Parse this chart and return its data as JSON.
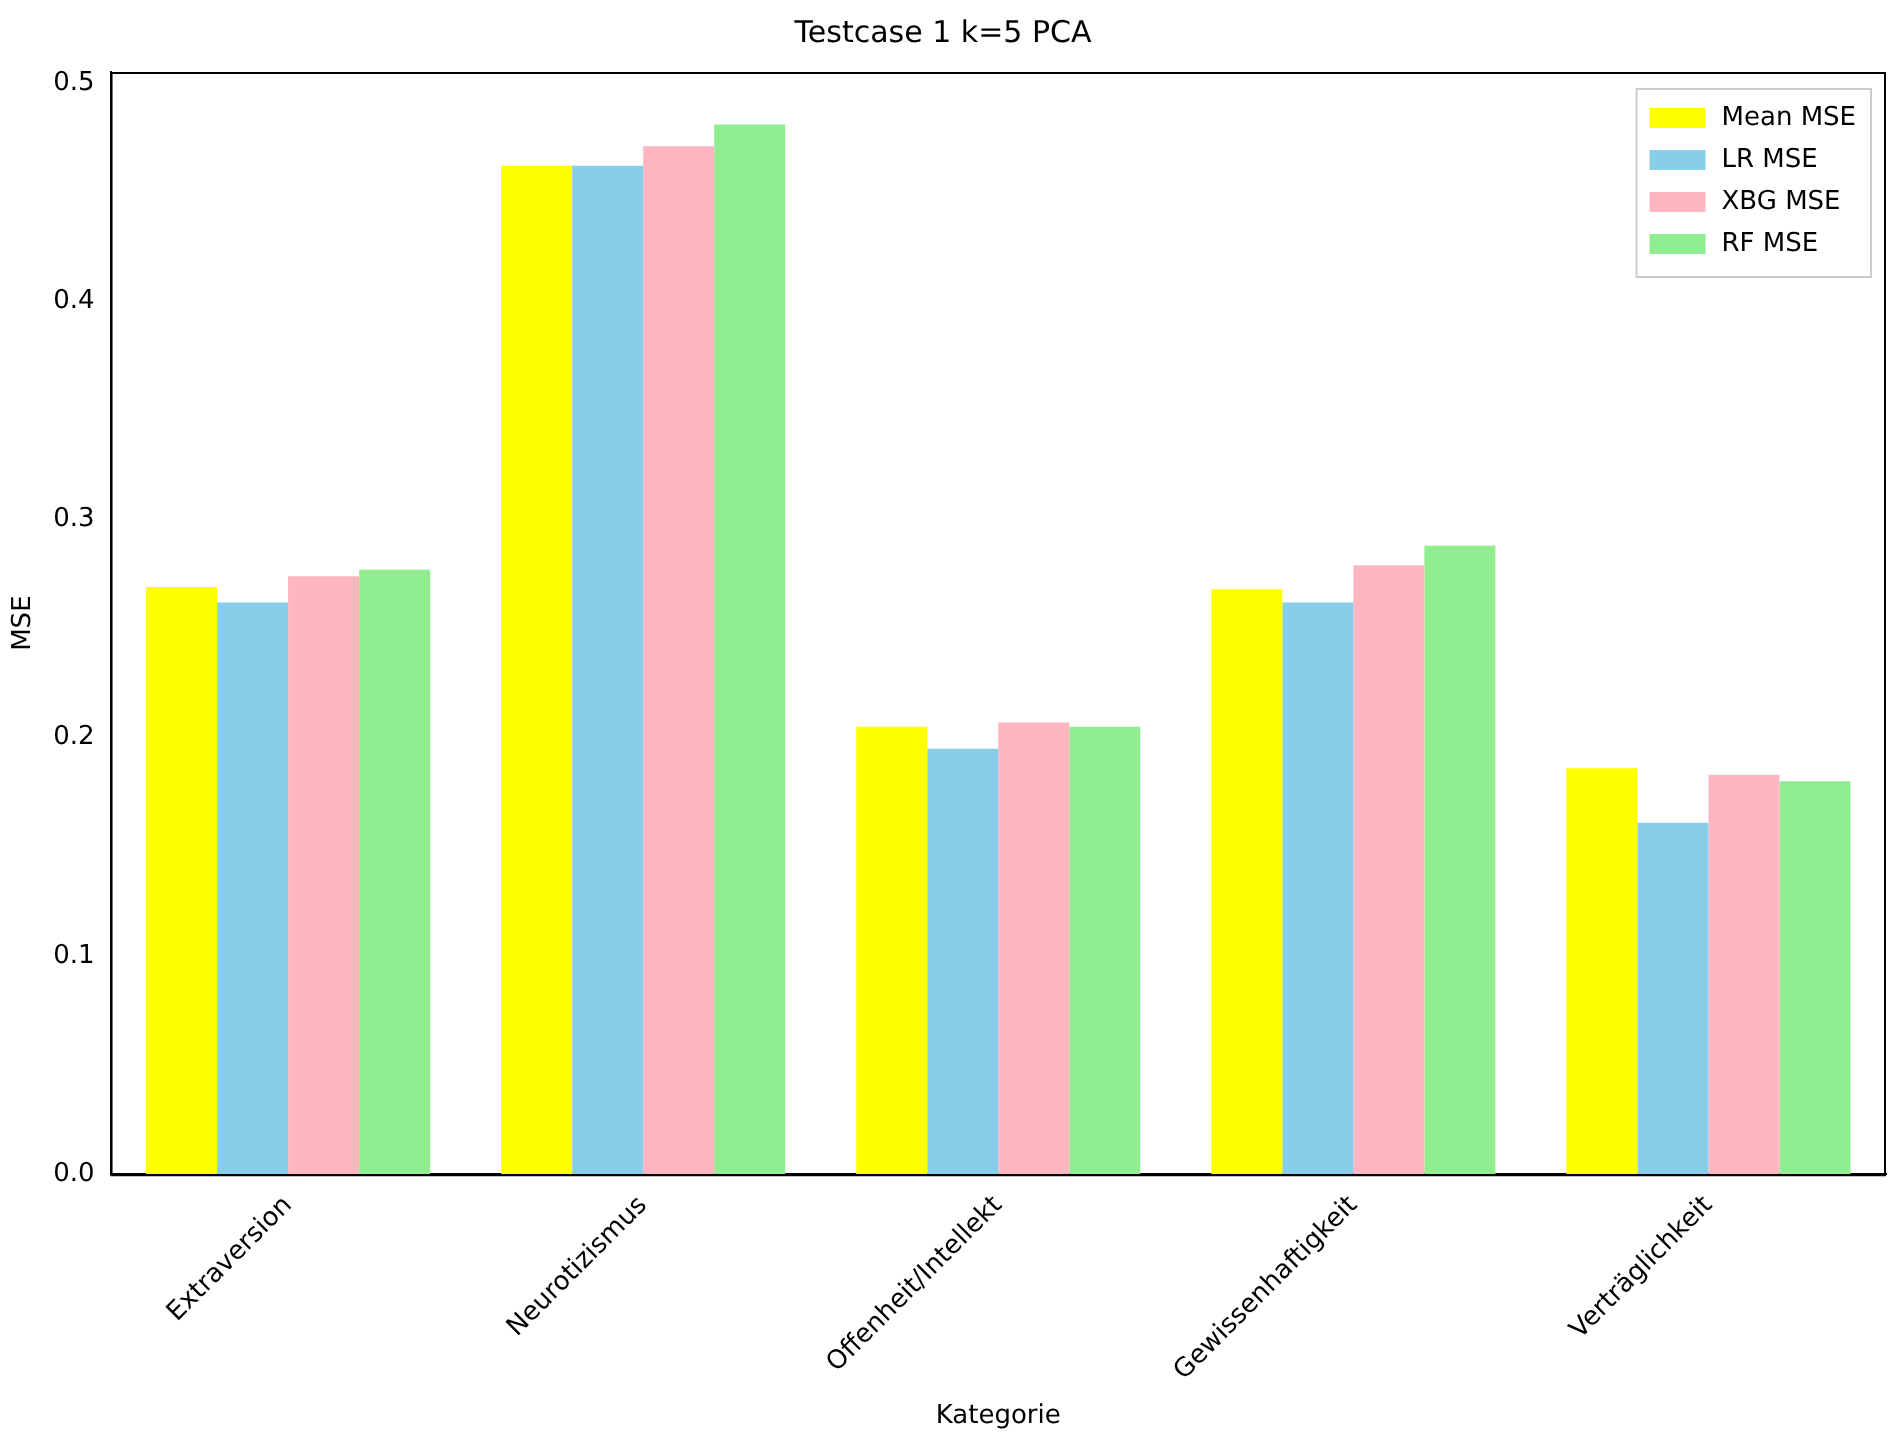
{
  "chart_data": {
    "type": "bar",
    "title": "Testcase 1 k=5 PCA",
    "xlabel": "Kategorie",
    "ylabel": "MSE",
    "categories": [
      "Extraversion",
      "Neurotizismus",
      "Offenheit/Intellekt",
      "Gewissenhaftigkeit",
      "Verträglichkeit"
    ],
    "series": [
      {
        "name": "Mean MSE",
        "color": "#ffff00",
        "values": [
          0.269,
          0.462,
          0.205,
          0.268,
          0.186
        ]
      },
      {
        "name": "LR MSE",
        "color": "#87ceeb",
        "values": [
          0.262,
          0.462,
          0.195,
          0.262,
          0.161
        ]
      },
      {
        "name": "XBG MSE",
        "color": "#ffb6c1",
        "values": [
          0.274,
          0.471,
          0.207,
          0.279,
          0.183
        ]
      },
      {
        "name": "RF MSE",
        "color": "#90ee90",
        "values": [
          0.277,
          0.481,
          0.205,
          0.288,
          0.18
        ]
      }
    ],
    "ylim": [
      0,
      0.505
    ],
    "yticks": [
      {
        "value": 0,
        "label": "0.0"
      },
      {
        "value": 0.1,
        "label": "0.1"
      },
      {
        "value": 0.2,
        "label": "0.2"
      },
      {
        "value": 0.3,
        "label": "0.3"
      },
      {
        "value": 0.4,
        "label": "0.4"
      },
      {
        "value": 0.5,
        "label": "0.5"
      }
    ],
    "grid": false,
    "legend": "top right"
  }
}
